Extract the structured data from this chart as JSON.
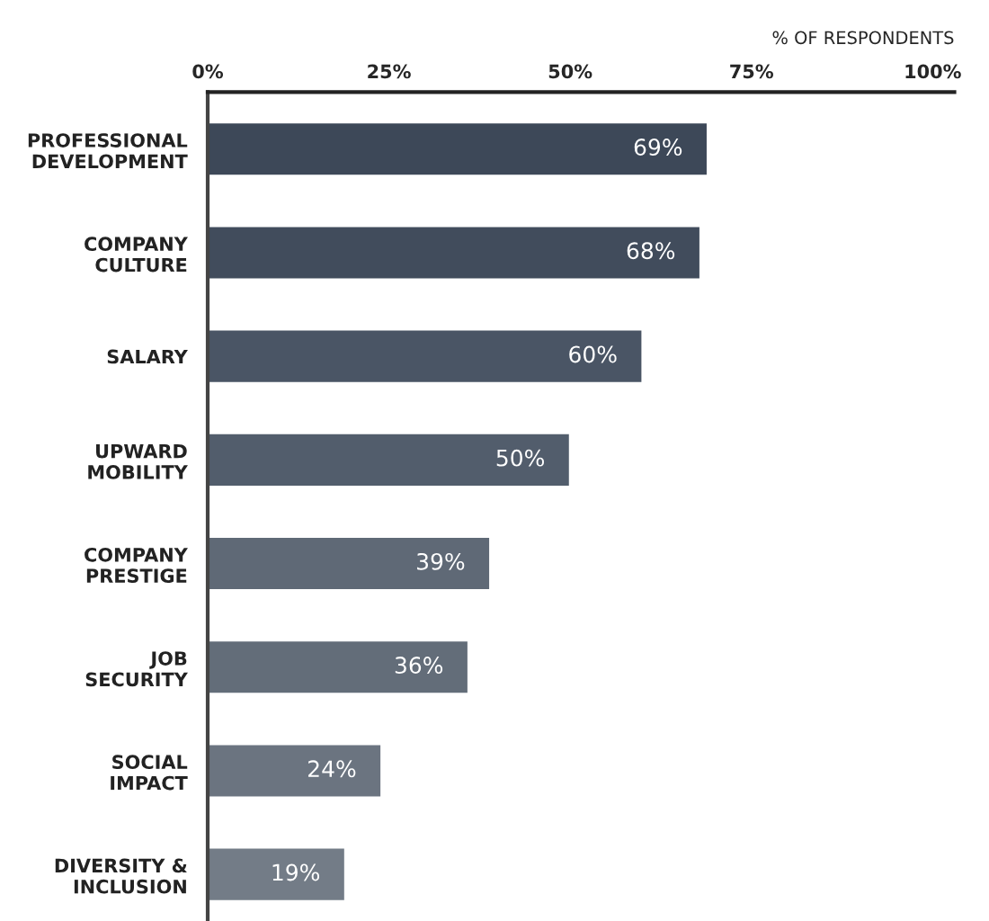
{
  "chart_data": {
    "type": "bar",
    "orientation": "horizontal",
    "xlabel": "% OF RESPONDENTS",
    "categories": [
      "PROFESSIONAL\nDEVELOPMENT",
      "COMPANY\nCULTURE",
      "SALARY",
      "UPWARD\nMOBILITY",
      "COMPANY\nPRESTIGE",
      "JOB\nSECURITY",
      "SOCIAL\nIMPACT",
      "DIVERSITY &\nINCLUSION"
    ],
    "values": [
      69,
      68,
      60,
      50,
      39,
      36,
      24,
      19
    ],
    "value_labels": [
      "69%",
      "68%",
      "60%",
      "50%",
      "39%",
      "36%",
      "24%",
      "19%"
    ],
    "colors": [
      "#3d4858",
      "#414c5c",
      "#4a5565",
      "#525d6c",
      "#5f6976",
      "#636d79",
      "#6b7480",
      "#737c87"
    ],
    "xlim": [
      0,
      103
    ],
    "xticks": [
      {
        "value": 0,
        "label": "0%"
      },
      {
        "value": 25,
        "label": "25%"
      },
      {
        "value": 50,
        "label": "50%"
      },
      {
        "value": 75,
        "label": "75%"
      },
      {
        "value": 100,
        "label": "100%"
      }
    ],
    "grid": false,
    "legend": false
  }
}
